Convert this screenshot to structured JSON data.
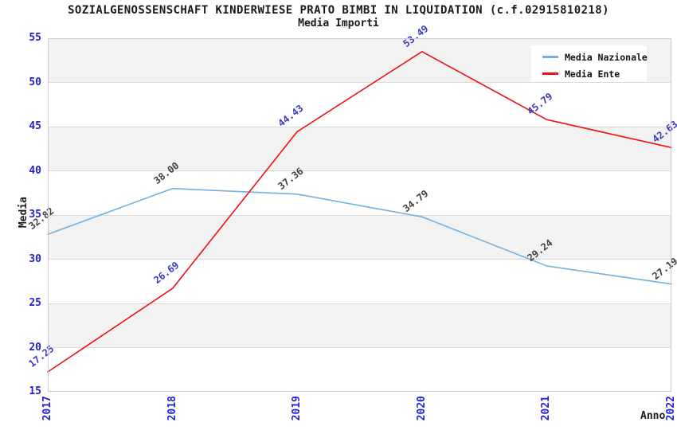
{
  "chart_data": {
    "type": "line",
    "title": "SOZIALGENOSSENSCHAFT KINDERWIESE PRATO BIMBI IN LIQUIDATION (c.f.02915810218)",
    "subtitle": "Media Importi",
    "xlabel": "Anno",
    "ylabel": "Media",
    "x": [
      "2017",
      "2018",
      "2019",
      "2020",
      "2021",
      "2022"
    ],
    "ylim": [
      15,
      55
    ],
    "ytick_step": 5,
    "yticks": [
      15,
      20,
      25,
      30,
      35,
      40,
      45,
      50,
      55
    ],
    "grid": "alternating horizontal bands with light gridlines",
    "legend_position": "upper-right",
    "label_format": "2-decimals, rotated 38deg above each point",
    "series": [
      {
        "name": "Media Nazionale",
        "color": "#74b1e0",
        "label_color": "#3f3f3f",
        "values": [
          32.82,
          38.0,
          37.36,
          34.79,
          29.24,
          27.19
        ]
      },
      {
        "name": "Media Ente",
        "color": "#ee1111",
        "label_color": "#3939bf",
        "values": [
          17.25,
          26.69,
          44.43,
          53.49,
          45.79,
          42.63
        ]
      }
    ],
    "colors": {
      "tick_label": "#2222cc",
      "band_gray": "#f2f2f2",
      "band_white": "#ffffff",
      "gridline": "#dadada",
      "plot_border": "#cccccc",
      "background": "#ffffff",
      "title_text": "#1a1a1a"
    }
  }
}
